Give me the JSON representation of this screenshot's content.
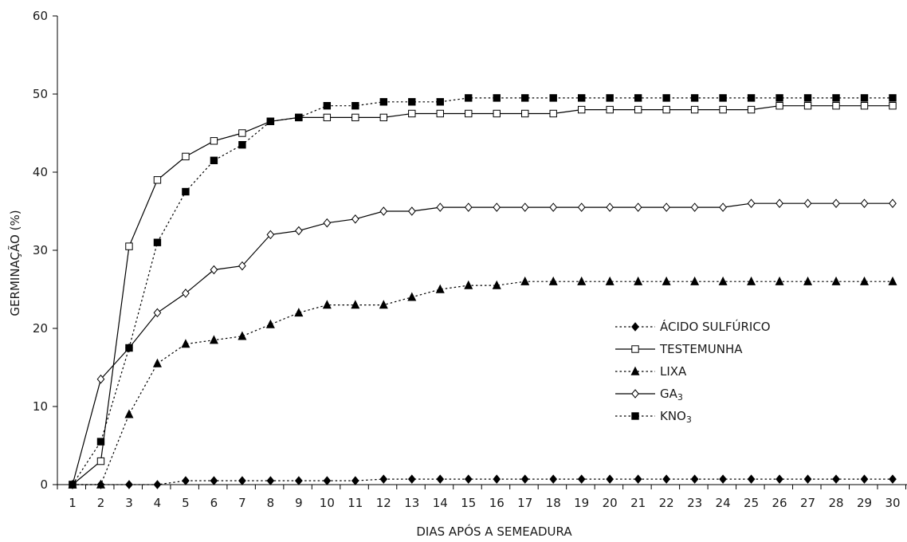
{
  "chart_data": {
    "type": "line",
    "title": "",
    "xlabel": "DIAS APÓS A SEMEADURA",
    "ylabel": "GERMINAÇÃO (%)",
    "x": [
      1,
      2,
      3,
      4,
      5,
      6,
      7,
      8,
      9,
      10,
      11,
      12,
      13,
      14,
      15,
      16,
      17,
      18,
      19,
      20,
      21,
      22,
      23,
      24,
      25,
      26,
      27,
      28,
      29,
      30
    ],
    "xlim": [
      1,
      30
    ],
    "ylim": [
      0,
      60
    ],
    "yticks": [
      0,
      10,
      20,
      30,
      40,
      50,
      60
    ],
    "grid": false,
    "legend_position": "right-middle",
    "series": [
      {
        "name": "ÁCIDO SULFÚRICO",
        "line": "dotted",
        "marker": "filled-diamond",
        "values": [
          0,
          0,
          0,
          0,
          0.5,
          0.5,
          0.5,
          0.5,
          0.5,
          0.5,
          0.5,
          0.7,
          0.7,
          0.7,
          0.7,
          0.7,
          0.7,
          0.7,
          0.7,
          0.7,
          0.7,
          0.7,
          0.7,
          0.7,
          0.7,
          0.7,
          0.7,
          0.7,
          0.7,
          0.7
        ]
      },
      {
        "name": "TESTEMUNHA",
        "line": "solid",
        "marker": "open-square",
        "values": [
          0,
          3,
          30.5,
          39,
          42,
          44,
          45,
          46.5,
          47,
          47,
          47,
          47,
          47.5,
          47.5,
          47.5,
          47.5,
          47.5,
          47.5,
          48,
          48,
          48,
          48,
          48,
          48,
          48,
          48.5,
          48.5,
          48.5,
          48.5,
          48.5
        ]
      },
      {
        "name": "LIXA",
        "line": "dotted",
        "marker": "filled-triangle",
        "values": [
          0,
          0,
          9,
          15.5,
          18,
          18.5,
          19,
          20.5,
          22,
          23,
          23,
          23,
          24,
          25,
          25.5,
          25.5,
          26,
          26,
          26,
          26,
          26,
          26,
          26,
          26,
          26,
          26,
          26,
          26,
          26,
          26
        ]
      },
      {
        "name": "GA",
        "name_sub": "3",
        "line": "solid",
        "marker": "open-diamond",
        "values": [
          0,
          13.5,
          17.5,
          22,
          24.5,
          27.5,
          28,
          32,
          32.5,
          33.5,
          34,
          35,
          35,
          35.5,
          35.5,
          35.5,
          35.5,
          35.5,
          35.5,
          35.5,
          35.5,
          35.5,
          35.5,
          35.5,
          36,
          36,
          36,
          36,
          36,
          36
        ]
      },
      {
        "name": "KNO",
        "name_sub": "3",
        "line": "dotted",
        "marker": "filled-square",
        "values": [
          0,
          5.5,
          17.5,
          31,
          37.5,
          41.5,
          43.5,
          46.5,
          47,
          48.5,
          48.5,
          49,
          49,
          49,
          49.5,
          49.5,
          49.5,
          49.5,
          49.5,
          49.5,
          49.5,
          49.5,
          49.5,
          49.5,
          49.5,
          49.5,
          49.5,
          49.5,
          49.5,
          49.5
        ]
      }
    ]
  }
}
